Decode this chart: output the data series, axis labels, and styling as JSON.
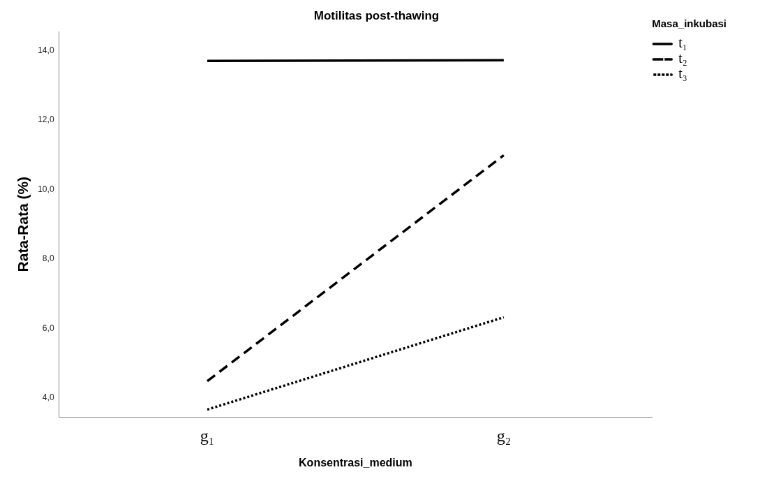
{
  "chart_data": {
    "type": "line",
    "title": "Motilitas post-thawing",
    "xlabel": "Konsentrasi_medium",
    "ylabel": "Rata-Rata (%)",
    "legend_title": "Masa_inkubasi",
    "categories": [
      "g₁",
      "g₂"
    ],
    "series": [
      {
        "name": "t₁",
        "color": "#000000",
        "line_style": "solid",
        "values": [
          13.71,
          13.73
        ]
      },
      {
        "name": "t₂",
        "color": "#000000",
        "line_style": "dashed",
        "values": [
          4.48,
          10.99
        ]
      },
      {
        "name": "t₃",
        "color": "#000000",
        "line_style": "dotted",
        "values": [
          3.66,
          6.32
        ]
      }
    ],
    "ylim": [
      3.45,
      14.55
    ],
    "yticks": [
      {
        "value": 4,
        "label": "4,0"
      },
      {
        "value": 6,
        "label": "6,0"
      },
      {
        "value": 8,
        "label": "8,0"
      },
      {
        "value": 10,
        "label": "10,0"
      },
      {
        "value": 12,
        "label": "12,0"
      },
      {
        "value": 14,
        "label": "14,0"
      }
    ],
    "grid": false,
    "legend": "top right",
    "marker": "none"
  }
}
